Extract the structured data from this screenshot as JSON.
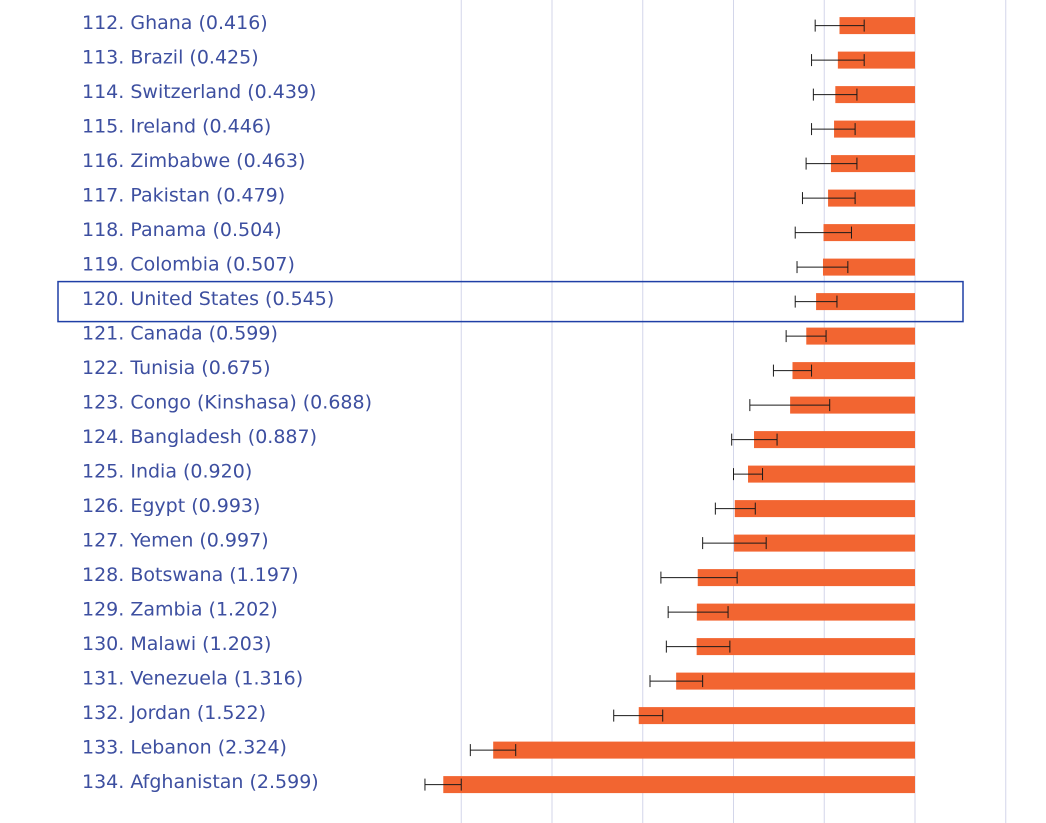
{
  "colors": {
    "bar": "#f26531",
    "label_text": "#3d4fa0",
    "grid": "#d3d6ea",
    "error_bar": "#1a1a1a",
    "highlight_box": "#1f3fa6"
  },
  "chart_data": {
    "type": "bar",
    "orientation": "horizontal",
    "title": "",
    "xlabel": "",
    "ylabel": "",
    "grid": true,
    "highlight": "120. United States (0.545)",
    "categories": [
      "112. Ghana (0.416)",
      "113. Brazil (0.425)",
      "114. Switzerland (0.439)",
      "115. Ireland (0.446)",
      "116. Zimbabwe (0.463)",
      "117. Pakistan (0.479)",
      "118. Panama (0.504)",
      "119. Colombia (0.507)",
      "120. United States (0.545)",
      "121. Canada (0.599)",
      "122. Tunisia (0.675)",
      "123. Congo (Kinshasa) (0.688)",
      "124. Bangladesh (0.887)",
      "125. India (0.920)",
      "126. Egypt (0.993)",
      "127. Yemen (0.997)",
      "128. Botswana (1.197)",
      "129. Zambia (1.202)",
      "130. Malawi (1.203)",
      "131. Venezuela (1.316)",
      "132. Jordan (1.522)",
      "133. Lebanon (2.324)",
      "134. Afghanistan (2.599)"
    ],
    "values": [
      0.416,
      0.425,
      0.439,
      0.446,
      0.463,
      0.479,
      0.504,
      0.507,
      0.545,
      0.599,
      0.675,
      0.688,
      0.887,
      0.92,
      0.993,
      0.997,
      1.197,
      1.202,
      1.203,
      1.316,
      1.522,
      2.324,
      2.599
    ],
    "error_low": [
      0.55,
      0.57,
      0.56,
      0.57,
      0.6,
      0.62,
      0.66,
      0.65,
      0.66,
      0.71,
      0.78,
      0.91,
      1.01,
      1.0,
      1.1,
      1.17,
      1.4,
      1.36,
      1.37,
      1.46,
      1.66,
      2.45,
      2.7
    ],
    "error_high": [
      0.28,
      0.28,
      0.32,
      0.33,
      0.32,
      0.33,
      0.35,
      0.37,
      0.43,
      0.49,
      0.57,
      0.47,
      0.76,
      0.84,
      0.88,
      0.82,
      0.98,
      1.03,
      1.02,
      1.17,
      1.39,
      2.2,
      2.5
    ],
    "xlim": [
      0,
      2.8
    ]
  }
}
